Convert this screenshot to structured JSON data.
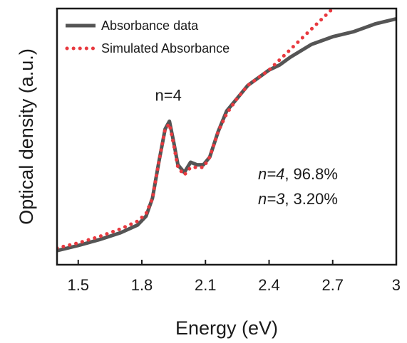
{
  "chart_data": {
    "type": "line",
    "xlabel": "Energy (eV)",
    "ylabel": "Optical density (a.u.)",
    "xlim": [
      1.4,
      3.0
    ],
    "ylim": [
      0,
      1
    ],
    "xticks": [
      1.5,
      1.8,
      2.1,
      2.4,
      2.7,
      3.0
    ],
    "xtick_labels": [
      "1.5",
      "1.8",
      "2.1",
      "2.4",
      "2.7",
      "3"
    ],
    "yticks_shown": false,
    "grid": false,
    "legend_position": "top-left",
    "series": [
      {
        "name": "Absorbance data",
        "style": "solid",
        "color": "#555555",
        "x": [
          1.4,
          1.5,
          1.6,
          1.7,
          1.78,
          1.82,
          1.85,
          1.88,
          1.91,
          1.93,
          1.95,
          1.97,
          2.0,
          2.03,
          2.06,
          2.09,
          2.12,
          2.16,
          2.2,
          2.25,
          2.3,
          2.35,
          2.4,
          2.45,
          2.5,
          2.6,
          2.7,
          2.8,
          2.9,
          3.0
        ],
        "y": [
          0.055,
          0.075,
          0.098,
          0.125,
          0.155,
          0.19,
          0.26,
          0.4,
          0.53,
          0.56,
          0.48,
          0.39,
          0.36,
          0.4,
          0.39,
          0.39,
          0.42,
          0.52,
          0.6,
          0.65,
          0.7,
          0.73,
          0.76,
          0.78,
          0.81,
          0.86,
          0.89,
          0.91,
          0.94,
          0.96
        ]
      },
      {
        "name": "Simulated Absorbance",
        "style": "dotted",
        "color": "#e8393f",
        "x": [
          1.4,
          1.5,
          1.6,
          1.7,
          1.78,
          1.82,
          1.85,
          1.88,
          1.91,
          1.93,
          1.95,
          1.97,
          2.0,
          2.03,
          2.06,
          2.09,
          2.12,
          2.16,
          2.2,
          2.25,
          2.3,
          2.35,
          2.4,
          2.45,
          2.5,
          2.55,
          2.6,
          2.65,
          2.7,
          2.74
        ],
        "y": [
          0.065,
          0.085,
          0.11,
          0.14,
          0.17,
          0.2,
          0.26,
          0.4,
          0.53,
          0.55,
          0.47,
          0.38,
          0.35,
          0.38,
          0.38,
          0.38,
          0.42,
          0.52,
          0.59,
          0.65,
          0.7,
          0.73,
          0.76,
          0.8,
          0.84,
          0.88,
          0.92,
          0.96,
          1.0,
          1.03
        ]
      }
    ],
    "annotations": [
      {
        "text": "n=4",
        "x": 1.925,
        "y": 0.64
      }
    ],
    "annotation_lines": [
      {
        "italic": "n=4",
        "rest": ", 96.8%"
      },
      {
        "italic": "n=3",
        "rest": ", 3.20%"
      }
    ]
  }
}
